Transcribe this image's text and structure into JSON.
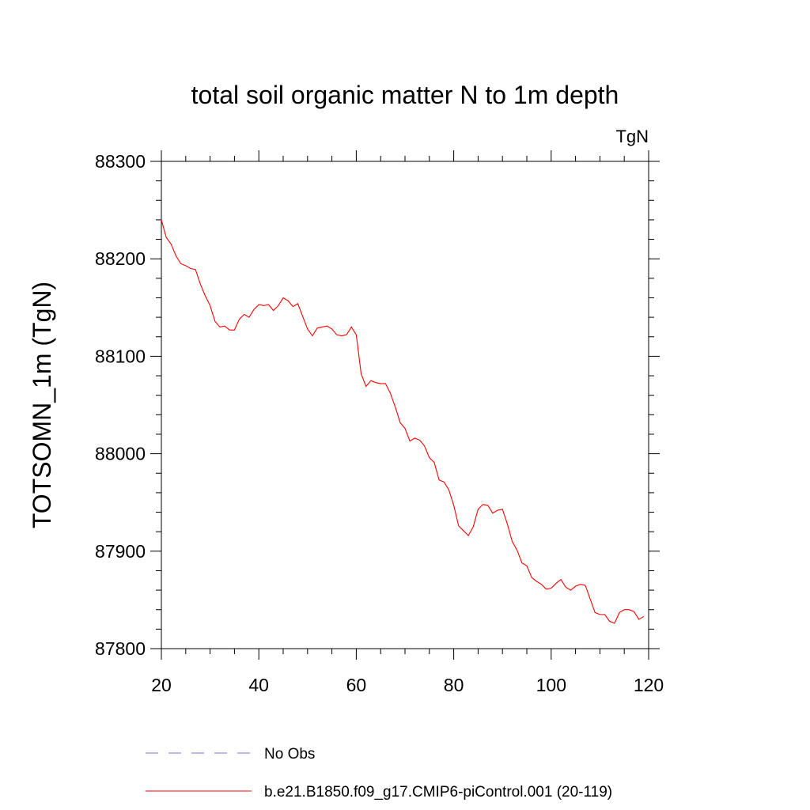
{
  "chart_data": {
    "type": "line",
    "title": "total soil organic matter N to 1m depth",
    "units": "TgN",
    "xlabel": "",
    "ylabel": "TOTSOMN_1m  (TgN)",
    "xlim": [
      20,
      120
    ],
    "ylim": [
      87800,
      88300
    ],
    "x_ticks": [
      20,
      40,
      60,
      80,
      100,
      120
    ],
    "x_tick_labels": [
      "20",
      "40",
      "60",
      "80",
      "100",
      "120"
    ],
    "y_ticks": [
      87800,
      87900,
      88000,
      88100,
      88200,
      88300
    ],
    "y_tick_labels": [
      "87800",
      "87900",
      "88000",
      "88100",
      "88200",
      "88300"
    ],
    "grid": false,
    "legend_position": "bottom",
    "series": [
      {
        "name": "No Obs",
        "color": "#7b6fd6",
        "dash": "dashed",
        "x": [],
        "values": []
      },
      {
        "name": "b.e21.B1850.f09_g17.CMIP6-piControl.001 (20-119)",
        "color": "#ff0000",
        "dash": "solid",
        "x": [
          20,
          21,
          22,
          23,
          24,
          25,
          26,
          27,
          28,
          29,
          30,
          31,
          32,
          33,
          34,
          35,
          36,
          37,
          38,
          39,
          40,
          41,
          42,
          43,
          44,
          45,
          46,
          47,
          48,
          49,
          50,
          51,
          52,
          53,
          54,
          55,
          56,
          57,
          58,
          59,
          60,
          61,
          62,
          63,
          64,
          65,
          66,
          67,
          68,
          69,
          70,
          71,
          72,
          73,
          74,
          75,
          76,
          77,
          78,
          79,
          80,
          81,
          82,
          83,
          84,
          85,
          86,
          87,
          88,
          89,
          90,
          91,
          92,
          93,
          94,
          95,
          96,
          97,
          98,
          99,
          100,
          101,
          102,
          103,
          104,
          105,
          106,
          107,
          108,
          109,
          110,
          111,
          112,
          113,
          114,
          115,
          116,
          117,
          118,
          119
        ],
        "values": [
          88240,
          88222,
          88215,
          88203,
          88195,
          88193,
          88190,
          88189,
          88174,
          88162,
          88152,
          88136,
          88130,
          88131,
          88127,
          88127,
          88138,
          88143,
          88140,
          88148,
          88153,
          88152,
          88153,
          88147,
          88152,
          88160,
          88157,
          88151,
          88154,
          88141,
          88128,
          88121,
          88129,
          88130,
          88131,
          88128,
          88122,
          88121,
          88122,
          88130,
          88122,
          88082,
          88069,
          88075,
          88073,
          88072,
          88072,
          88062,
          88048,
          88032,
          88026,
          88013,
          88016,
          88014,
          88008,
          87996,
          87991,
          87973,
          87971,
          87963,
          87947,
          87926,
          87921,
          87916,
          87925,
          87943,
          87948,
          87947,
          87939,
          87942,
          87943,
          87928,
          87910,
          87901,
          87888,
          87885,
          87873,
          87869,
          87866,
          87861,
          87862,
          87867,
          87871,
          87863,
          87860,
          87864,
          87866,
          87865,
          87851,
          87837,
          87835,
          87835,
          87828,
          87826,
          87837,
          87840,
          87840,
          87838,
          87830,
          87833
        ]
      }
    ]
  }
}
